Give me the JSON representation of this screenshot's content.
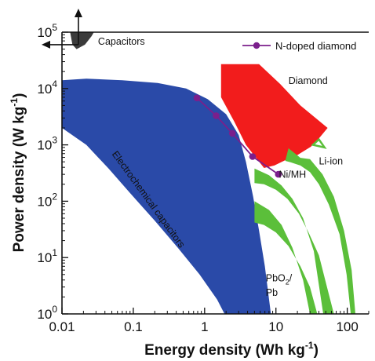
{
  "chart_data": {
    "type": "scatter",
    "title": "",
    "xlabel": {
      "main": "Energy density (Wh kg",
      "sup": "-1",
      "end": ")"
    },
    "ylabel": {
      "main": "Power density (W kg",
      "sup": "-1",
      "end": ")"
    },
    "x_scale": "log",
    "y_scale": "log",
    "xlim": [
      0.01,
      200
    ],
    "ylim": [
      1,
      100000
    ],
    "x_ticks": [
      {
        "value": 0.01,
        "label": "0.01"
      },
      {
        "value": 0.1,
        "label": "0.1"
      },
      {
        "value": 1,
        "label": "1"
      },
      {
        "value": 10,
        "label": "10"
      },
      {
        "value": 100,
        "label": "100"
      }
    ],
    "y_ticks": [
      {
        "value": 1,
        "base": "10",
        "exp": "0"
      },
      {
        "value": 10,
        "base": "10",
        "exp": "1"
      },
      {
        "value": 100,
        "base": "10",
        "exp": "2"
      },
      {
        "value": 1000,
        "base": "10",
        "exp": "3"
      },
      {
        "value": 10000,
        "base": "10",
        "exp": "4"
      },
      {
        "value": 100000,
        "base": "10",
        "exp": "5"
      }
    ],
    "legend": {
      "position": "top-right",
      "entries": [
        "N-doped diamond"
      ]
    },
    "series": [
      {
        "name": "N-doped diamond",
        "color": "#7b1f8c",
        "marker": "circle",
        "points": [
          [
            0.78,
            6800
          ],
          [
            1.45,
            3300
          ],
          [
            2.45,
            1600
          ],
          [
            4.7,
            620
          ],
          [
            10.8,
            300
          ]
        ]
      }
    ],
    "regions": [
      {
        "label": "Capacitors",
        "color": "#3b3b3b",
        "polygon": [
          [
            0.013,
            100000
          ],
          [
            0.014,
            60000
          ],
          [
            0.016,
            50000
          ],
          [
            0.021,
            60000
          ],
          [
            0.026,
            85000
          ],
          [
            0.028,
            100000
          ]
        ]
      },
      {
        "label": "Electrochemical capacitors",
        "color": "#2a4aa8",
        "polygon": [
          [
            0.01,
            14000
          ],
          [
            0.022,
            15000
          ],
          [
            0.07,
            14000
          ],
          [
            0.22,
            12500
          ],
          [
            0.55,
            10000
          ],
          [
            1.1,
            6500
          ],
          [
            2.0,
            3500
          ],
          [
            3.0,
            1500
          ],
          [
            3.8,
            500
          ],
          [
            4.8,
            120
          ],
          [
            5.8,
            30
          ],
          [
            7.0,
            7
          ],
          [
            8.5,
            1
          ],
          [
            1.9,
            1
          ],
          [
            1.5,
            1.8
          ],
          [
            0.85,
            5
          ],
          [
            0.42,
            15
          ],
          [
            0.2,
            45
          ],
          [
            0.09,
            140
          ],
          [
            0.045,
            380
          ],
          [
            0.022,
            1000
          ],
          [
            0.01,
            2000
          ]
        ]
      },
      {
        "label": "Diamond",
        "color": "#f21c1c",
        "polygon": [
          [
            1.7,
            27000
          ],
          [
            5.8,
            27000
          ],
          [
            11.5,
            12000
          ],
          [
            22,
            5000
          ],
          [
            53,
            2000
          ],
          [
            40,
            1300
          ],
          [
            31,
            930
          ],
          [
            20,
            660
          ],
          [
            15,
            570
          ],
          [
            9.5,
            430
          ],
          [
            6.8,
            390
          ],
          [
            3.8,
            1000
          ],
          [
            2.6,
            2600
          ],
          [
            1.7,
            7000
          ]
        ]
      },
      {
        "label": "Li-ion",
        "color": "#5bbf3a",
        "polygon": [
          [
            15,
            870
          ],
          [
            22,
            590
          ],
          [
            30,
            560
          ],
          [
            45,
            300
          ],
          [
            65,
            120
          ],
          [
            90,
            30
          ],
          [
            115,
            6
          ],
          [
            130,
            1
          ],
          [
            112,
            1
          ],
          [
            98,
            5
          ],
          [
            78,
            26
          ],
          [
            55,
            88
          ],
          [
            40,
            200
          ],
          [
            30,
            330
          ],
          [
            22,
            430
          ],
          [
            16,
            490
          ],
          [
            13.5,
            520
          ]
        ]
      },
      {
        "label": "Ni/MH",
        "color": "#5bbf3a",
        "polygon": [
          [
            5,
            380
          ],
          [
            8,
            290
          ],
          [
            12,
            190
          ],
          [
            17,
            110
          ],
          [
            24,
            50
          ],
          [
            34,
            13
          ],
          [
            46,
            1
          ],
          [
            65,
            1
          ],
          [
            52,
            3
          ],
          [
            40,
            11
          ],
          [
            29,
            27
          ],
          [
            21,
            60
          ],
          [
            14.5,
            110
          ],
          [
            10,
            160
          ],
          [
            6.8,
            200
          ],
          [
            5,
            210
          ]
        ]
      },
      {
        "label": "PbO2/Pb",
        "color": "#5bbf3a",
        "polygon": [
          [
            5,
            100
          ],
          [
            8,
            70
          ],
          [
            12,
            38
          ],
          [
            17,
            15
          ],
          [
            24,
            4
          ],
          [
            30,
            1
          ],
          [
            38,
            1
          ],
          [
            30,
            3
          ],
          [
            22,
            7
          ],
          [
            15,
            16
          ],
          [
            10,
            28
          ],
          [
            6.8,
            38
          ],
          [
            5,
            42
          ]
        ]
      }
    ],
    "annotations": [
      {
        "text": "Capacitors",
        "x": 0.032,
        "y": 60000
      },
      {
        "text": "Diamond",
        "x": 15,
        "y": 12000
      },
      {
        "text": "Li-ion",
        "x": 40,
        "y": 450
      },
      {
        "text": "Ni/MH",
        "x": 11,
        "y": 260
      },
      {
        "text": "PbO",
        "sub": "2",
        "after": "/",
        "x": 7.2,
        "y": 3.8
      },
      {
        "text": "Pb",
        "x": 7.2,
        "y": 2.1
      },
      {
        "text": "Electrochemical capacitors",
        "x": 0.15,
        "y": 100,
        "rotate": 54
      }
    ],
    "grid": false
  }
}
